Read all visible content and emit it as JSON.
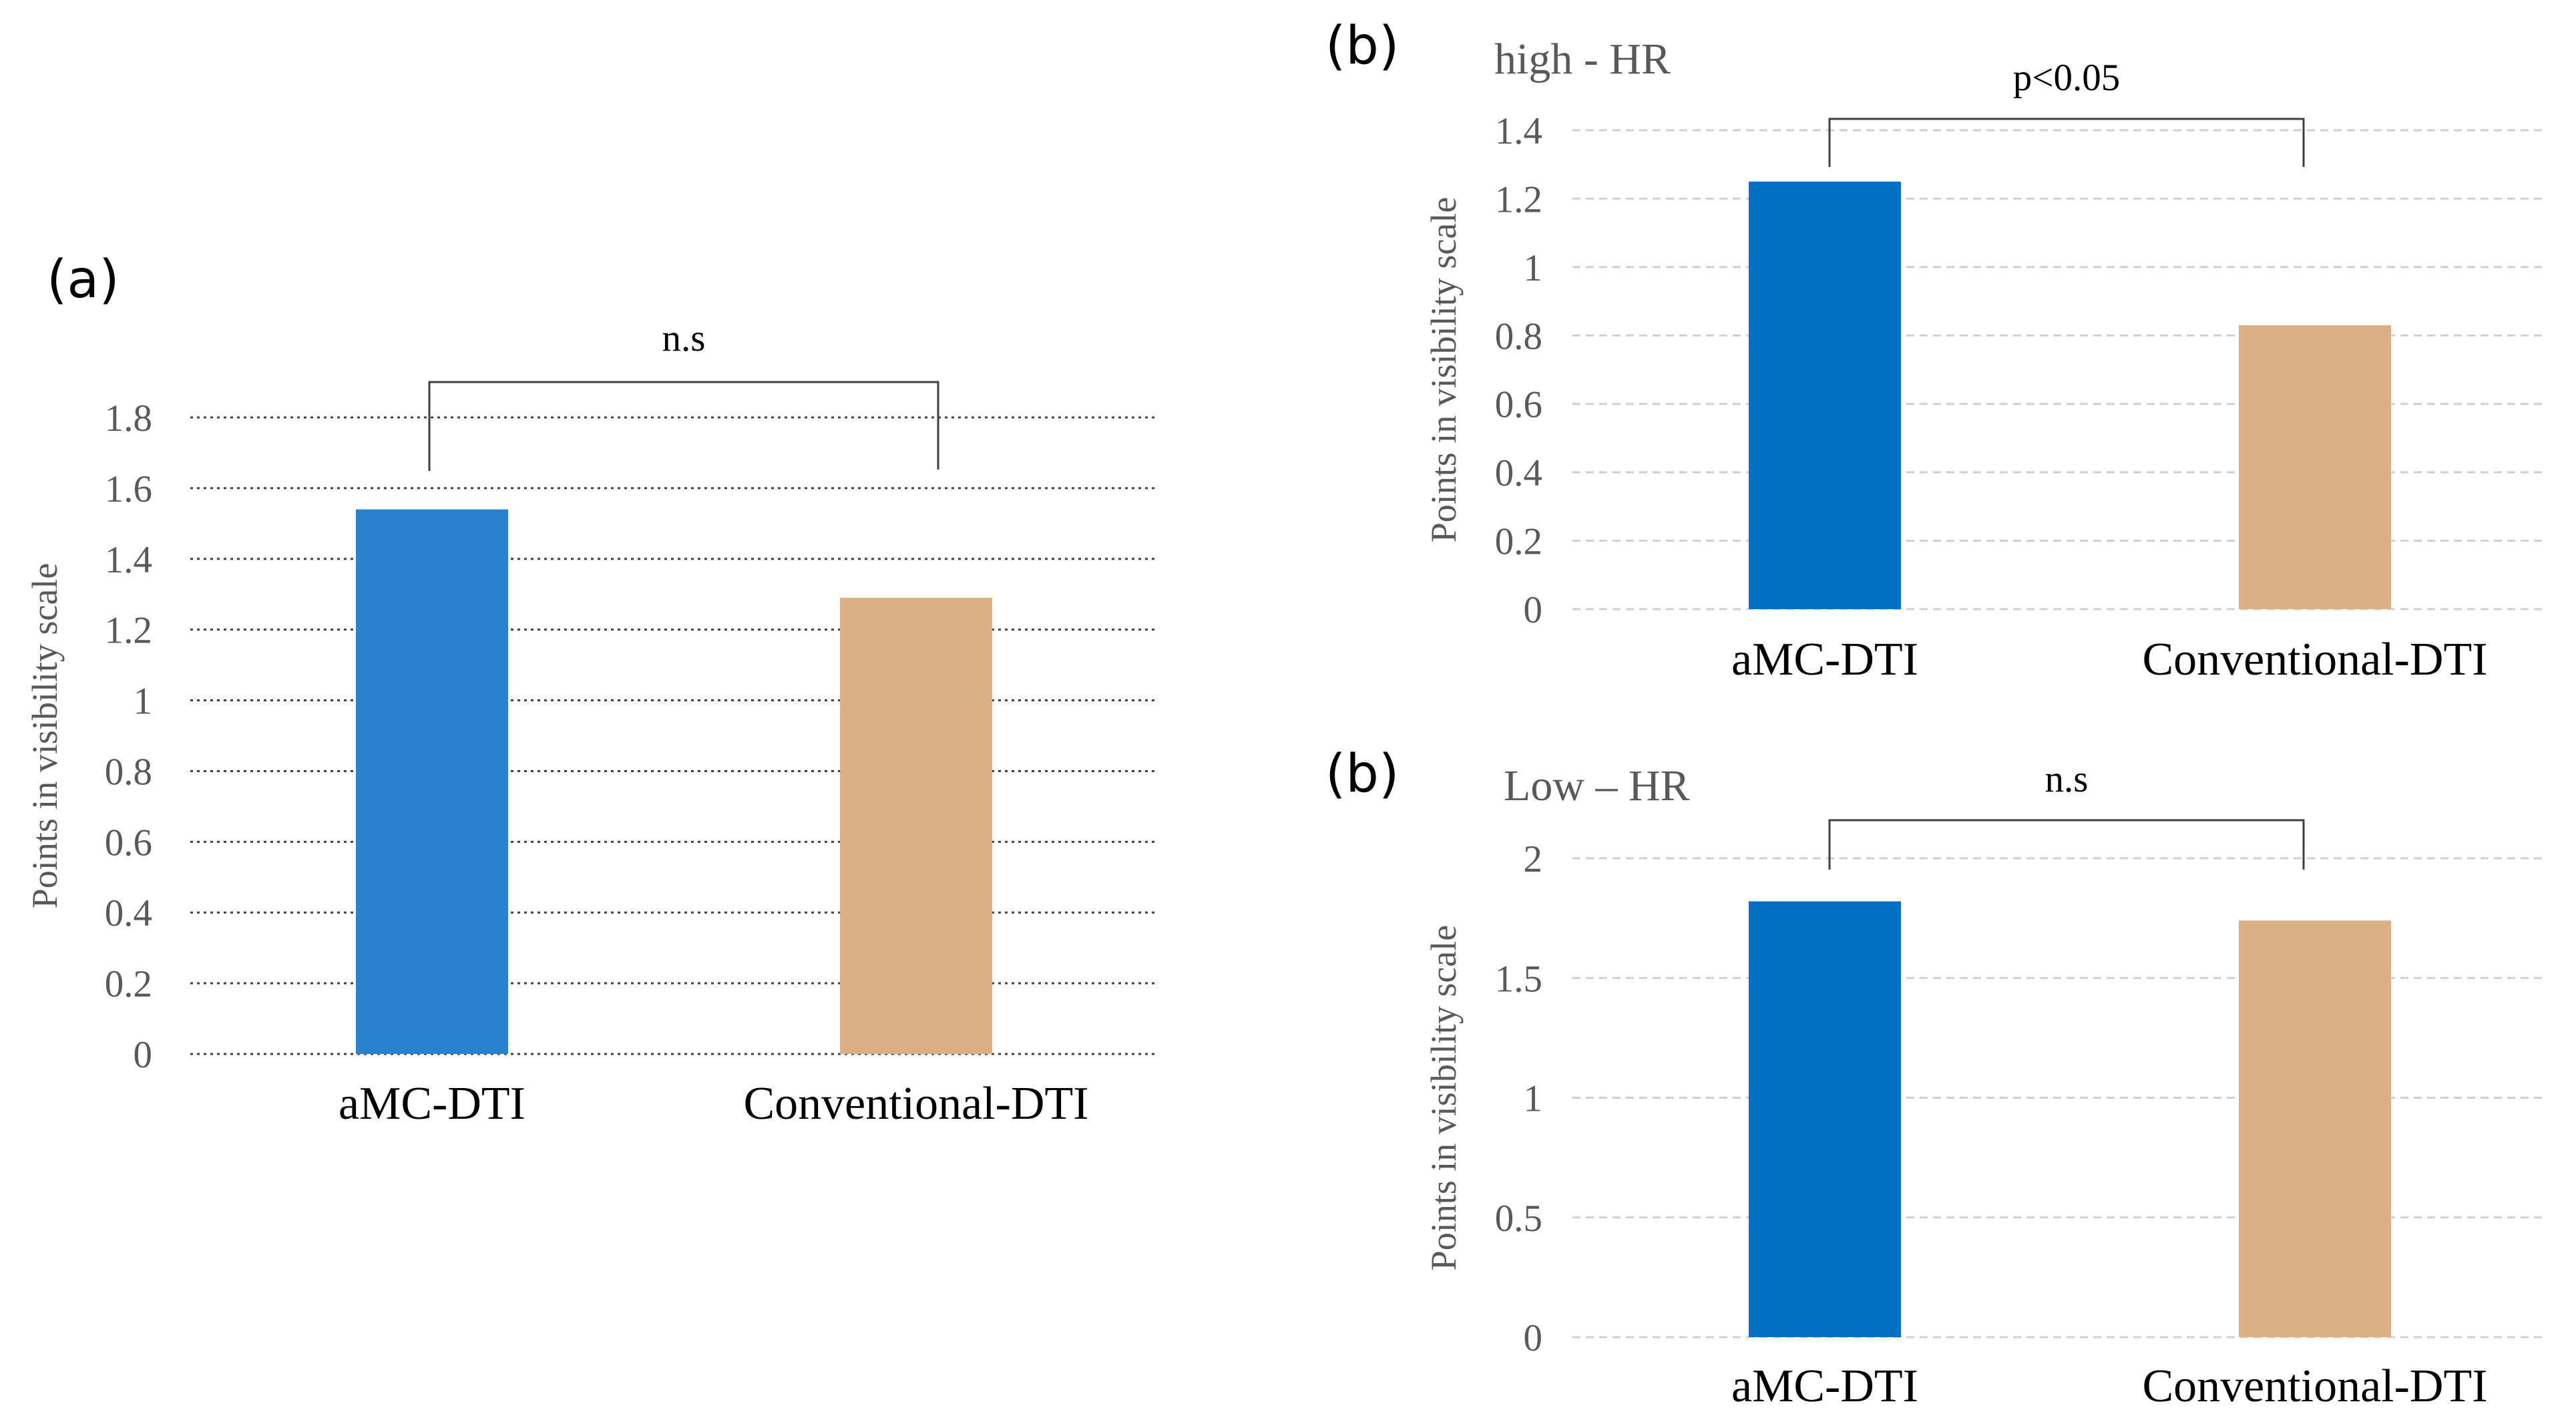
{
  "chart_data": [
    {
      "type": "bar",
      "panel_label": "(a)",
      "title": "",
      "categories": [
        "aMC-DTI",
        "Conventional-DTI"
      ],
      "values": [
        1.54,
        1.29
      ],
      "ylabel": "Points in visibility scale",
      "xlabel": "",
      "ylim": [
        0,
        1.8
      ],
      "yticks": [
        "0",
        "0.2",
        "0.4",
        "0.6",
        "0.8",
        "1",
        "1.2",
        "1.4",
        "1.6",
        "1.8"
      ],
      "grid": "dotted",
      "significance": "n.s",
      "colors": [
        "#2a80d1",
        "#dcb087"
      ]
    },
    {
      "type": "bar",
      "panel_label": "(b)",
      "title": "high - HR",
      "categories": [
        "aMC-DTI",
        "Conventional-DTI"
      ],
      "values": [
        1.25,
        0.83
      ],
      "ylabel": "Points in visibility scale",
      "xlabel": "",
      "ylim": [
        0,
        1.4
      ],
      "yticks": [
        "0",
        "0.2",
        "0.4",
        "0.6",
        "0.8",
        "1",
        "1.2",
        "1.4"
      ],
      "grid": "dashed",
      "significance": "p<0.05",
      "colors": [
        "#0070c0",
        "#dcb087"
      ]
    },
    {
      "type": "bar",
      "panel_label": "(b)",
      "title": "Low – HR",
      "categories": [
        "aMC-DTI",
        "Conventional-DTI"
      ],
      "values": [
        1.82,
        1.74
      ],
      "ylabel": "Points in visibility scale",
      "xlabel": "",
      "ylim": [
        0,
        2
      ],
      "yticks": [
        "0",
        "0.5",
        "1",
        "1.5",
        "2"
      ],
      "grid": "dashed",
      "significance": "n.s",
      "colors": [
        "#0070c0",
        "#dcb087"
      ]
    }
  ]
}
